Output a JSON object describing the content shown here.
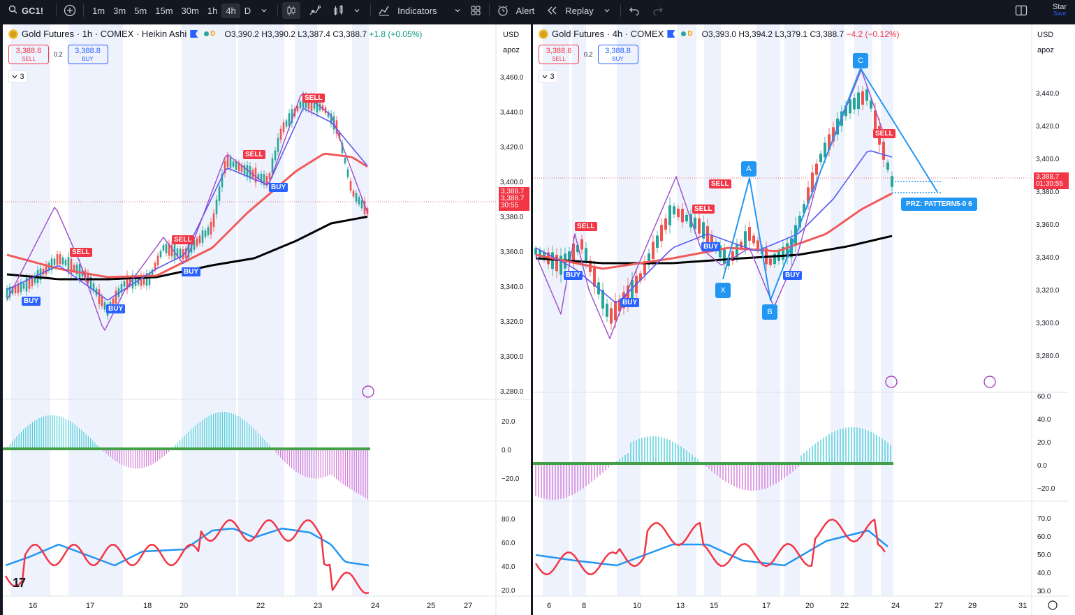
{
  "toolbar": {
    "symbol": "GC1!",
    "intervals": [
      "1m",
      "3m",
      "5m",
      "15m",
      "30m",
      "1h",
      "4h",
      "D"
    ],
    "active_interval": "4h",
    "indicators_label": "Indicators",
    "alert_label": "Alert",
    "replay_label": "Replay",
    "star_label": "Star",
    "save_label": "Save"
  },
  "left": {
    "title": "Gold Futures · 1h · COMEX · Heikin Ashi",
    "ohlc": {
      "o": "O3,390.2",
      "h": "H3,390.2",
      "l": "L3,387.4",
      "c": "C3,388.7",
      "chg": "+1.8 (+0.05%)"
    },
    "sell_price": "3,388.6",
    "sell_label": "SELL",
    "buy_price": "3,388.8",
    "buy_label": "BUY",
    "spread": "0.2",
    "collapse_count": "3",
    "currency": "USD",
    "scale": "apoz",
    "price_ticks": [
      "3,460.0",
      "3,440.0",
      "3,420.0",
      "3,400.0",
      "3,380.0",
      "3,360.0",
      "3,340.0",
      "3,320.0",
      "3,300.0",
      "3,280.0"
    ],
    "price_tag": [
      "3,388.7",
      "3,388.7",
      "30:55"
    ],
    "macd_ticks": [
      "20.0",
      "0.0",
      "−20.0"
    ],
    "rsi_ticks": [
      "80.0",
      "60.0",
      "40.0",
      "20.0"
    ],
    "x_ticks": [
      "16",
      "17",
      "18",
      "20",
      "22",
      "23",
      "24",
      "25",
      "27"
    ],
    "signals": [
      "BUY",
      "SELL",
      "BUY",
      "SELL",
      "BUY",
      "SELL",
      "BUY",
      "SELL"
    ]
  },
  "right": {
    "title": "Gold Futures · 4h · COMEX",
    "ohlc": {
      "o": "O3,393.0",
      "h": "H3,394.2",
      "l": "L3,379.1",
      "c": "C3,388.7",
      "chg": "−4.2 (−0.12%)"
    },
    "sell_price": "3,388.6",
    "sell_label": "SELL",
    "buy_price": "3,388.8",
    "buy_label": "BUY",
    "spread": "0.2",
    "collapse_count": "3",
    "currency": "USD",
    "scale": "apoz",
    "price_ticks": [
      "3,440.0",
      "3,420.0",
      "3,400.0",
      "3,380.0",
      "3,360.0",
      "3,340.0",
      "3,320.0",
      "3,300.0",
      "3,280.0"
    ],
    "price_tag": [
      "3,388.7",
      "01:30:55"
    ],
    "macd_ticks": [
      "60.0",
      "40.0",
      "20.0",
      "0.0",
      "−20.0"
    ],
    "rsi_ticks": [
      "70.0",
      "60.0",
      "50.0",
      "40.0",
      "30.0"
    ],
    "x_ticks": [
      "6",
      "8",
      "10",
      "13",
      "15",
      "17",
      "20",
      "22",
      "24",
      "27",
      "29",
      "31"
    ],
    "pattern_points": [
      "X",
      "A",
      "B",
      "C"
    ],
    "prz_label": "PRZ: PATTERN5-0 6",
    "signals": [
      "SELL",
      "BUY",
      "SELL",
      "BUY",
      "SELL",
      "BUY",
      "BUY",
      "SELL"
    ]
  },
  "colors": {
    "bg": "#ffffff",
    "toolbar_bg": "#131722",
    "sell": "#f23645",
    "buy": "#2962ff",
    "pattern": "#2196f3",
    "ema_black": "#000000",
    "ema_red": "#f05a5a",
    "ema_blue": "#5b5bf0",
    "ema_purple": "#9c4bc8",
    "macd_pos": "#4dd0d7",
    "macd_neg": "#d77bd9",
    "rsi_red": "#f23645",
    "rsi_blue": "#2196f3",
    "session_shade": "#eef2fd"
  },
  "icons": [
    "search-icon",
    "add-symbol-icon",
    "candles-icon",
    "line-chart-icon",
    "bar-chart-icon",
    "indicators-icon",
    "templates-icon",
    "alert-icon",
    "replay-icon",
    "undo-icon",
    "redo-icon",
    "layout-icon"
  ]
}
